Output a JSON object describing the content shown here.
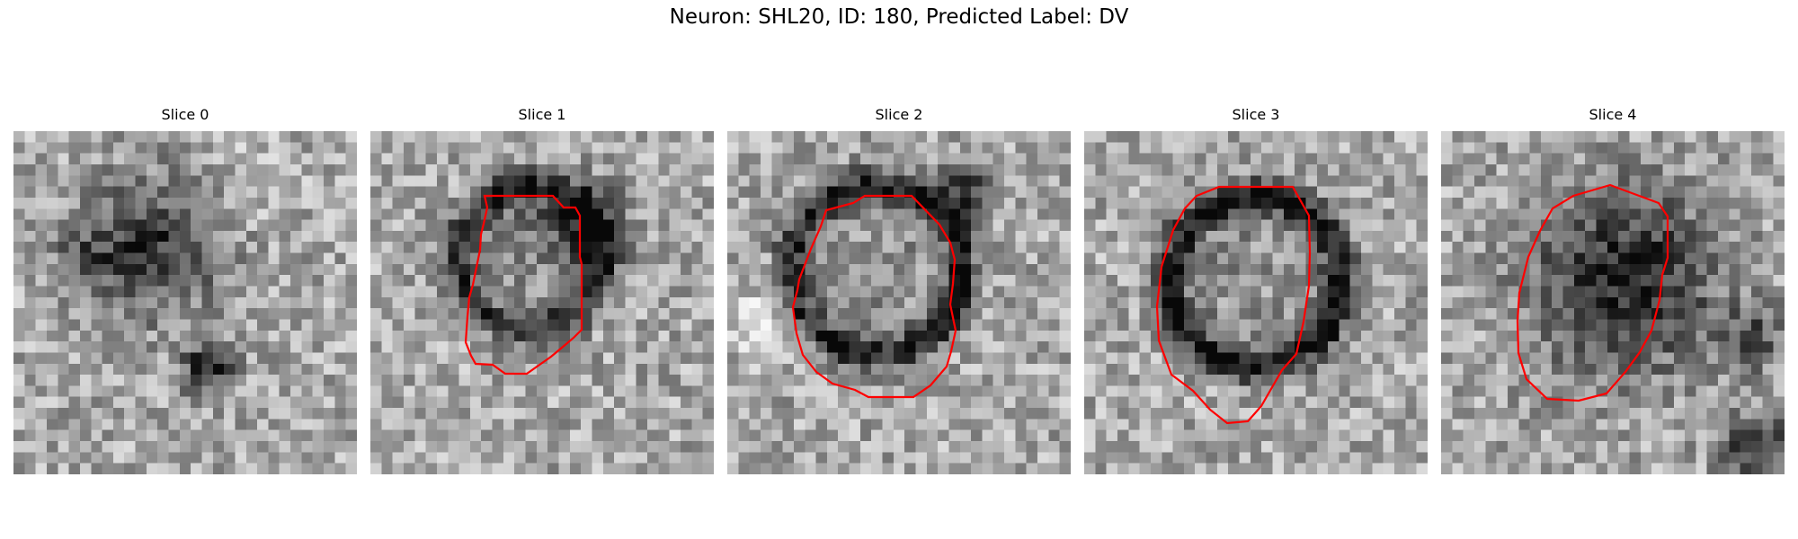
{
  "figure": {
    "title": "Neuron: SHL20, ID: 180, Predicted Label: DV"
  },
  "panels": [
    {
      "title": "Slice 0",
      "has_contour": false
    },
    {
      "title": "Slice 1",
      "has_contour": true
    },
    {
      "title": "Slice 2",
      "has_contour": true
    },
    {
      "title": "Slice 3",
      "has_contour": true
    },
    {
      "title": "Slice 4",
      "has_contour": true
    }
  ],
  "colors": {
    "contour": "#ff0000",
    "background": "#ffffff"
  }
}
